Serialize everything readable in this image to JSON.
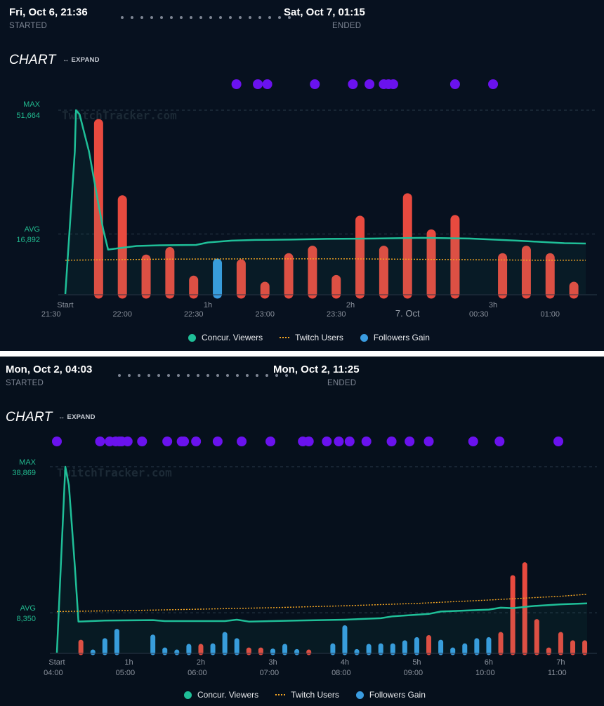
{
  "panels": [
    {
      "header": {
        "start_date": "Fri, Oct 6, 21:36",
        "start_label": "STARTED",
        "end_date": "Sat, Oct 7, 01:15",
        "end_label": "ENDED"
      },
      "chart_title": "CHART",
      "expand_label": "↔ EXPAND",
      "watermark": "TwitchTracker.com",
      "legend": {
        "viewers": "Concur. Viewers",
        "twitch": "Twitch Users",
        "followers": "Followers Gain"
      }
    },
    {
      "header": {
        "start_date": "Mon, Oct 2, 04:03",
        "start_label": "STARTED",
        "end_date": "Mon, Oct 2, 11:25",
        "end_label": "ENDED"
      },
      "chart_title": "CHART",
      "expand_label": "↔ EXPAND",
      "watermark": "TwitchTracker.com",
      "legend": {
        "viewers": "Concur. Viewers",
        "twitch": "Twitch Users",
        "followers": "Followers Gain"
      }
    }
  ],
  "colors": {
    "viewers": "#1fbf98",
    "twitch": "#f5a623",
    "followers_positive": "#e84a3f",
    "followers_gain": "#3a9ce0",
    "event_dot": "#6a12ee"
  },
  "chart_data": [
    {
      "type": "line",
      "y_markers": [
        {
          "label": "MAX",
          "value": 51664,
          "value_label": "51,664"
        },
        {
          "label": "AVG",
          "value": 16892,
          "value_label": "16,892"
        }
      ],
      "ylim": [
        0,
        51664
      ],
      "xlim_minutes": [
        0,
        219
      ],
      "x_duration_ticks": [
        {
          "label": "Start",
          "minutes": 0
        },
        {
          "label": "1h",
          "minutes": 60
        },
        {
          "label": "2h",
          "minutes": 120
        },
        {
          "label": "3h",
          "minutes": 180
        }
      ],
      "x_clock_ticks": [
        {
          "label": "21:30",
          "minutes": -6
        },
        {
          "label": "22:00",
          "minutes": 24
        },
        {
          "label": "22:30",
          "minutes": 54
        },
        {
          "label": "23:00",
          "minutes": 84
        },
        {
          "label": "23:30",
          "minutes": 114
        },
        {
          "label": "7. Oct",
          "minutes": 144,
          "bold": true
        },
        {
          "label": "00:30",
          "minutes": 174
        },
        {
          "label": "01:00",
          "minutes": 204
        }
      ],
      "series": [
        {
          "name": "Concur. Viewers",
          "kind": "line",
          "points": [
            [
              0,
              0
            ],
            [
              4,
              40000
            ],
            [
              4.5,
              51664
            ],
            [
              6,
              50500
            ],
            [
              10,
              40000
            ],
            [
              14,
              25000
            ],
            [
              16,
              18000
            ],
            [
              18,
              12500
            ],
            [
              30,
              13500
            ],
            [
              40,
              13700
            ],
            [
              55,
              13800
            ],
            [
              60,
              14500
            ],
            [
              70,
              15000
            ],
            [
              80,
              15200
            ],
            [
              95,
              15300
            ],
            [
              110,
              15500
            ],
            [
              130,
              15600
            ],
            [
              150,
              15800
            ],
            [
              170,
              15600
            ],
            [
              190,
              15000
            ],
            [
              210,
              14300
            ],
            [
              219,
              14200
            ]
          ]
        },
        {
          "name": "Twitch Users",
          "kind": "dotted",
          "points": [
            [
              0,
              9500
            ],
            [
              40,
              9800
            ],
            [
              80,
              9900
            ],
            [
              120,
              9900
            ],
            [
              160,
              9700
            ],
            [
              200,
              9500
            ],
            [
              219,
              9500
            ]
          ]
        }
      ],
      "followers": {
        "max": 27000,
        "bars": [
          {
            "minute": 14,
            "value": 25700,
            "type": "positive"
          },
          {
            "minute": 24,
            "value": 14500,
            "type": "positive"
          },
          {
            "minute": 34,
            "value": 5800,
            "type": "positive"
          },
          {
            "minute": 44,
            "value": 6900,
            "type": "positive"
          },
          {
            "minute": 54,
            "value": 2700,
            "type": "positive"
          },
          {
            "minute": 64,
            "value": 5200,
            "type": "gain"
          },
          {
            "minute": 74,
            "value": 5100,
            "type": "positive"
          },
          {
            "minute": 84,
            "value": 1800,
            "type": "positive"
          },
          {
            "minute": 94,
            "value": 6000,
            "type": "positive"
          },
          {
            "minute": 104,
            "value": 7100,
            "type": "positive"
          },
          {
            "minute": 114,
            "value": 2800,
            "type": "positive"
          },
          {
            "minute": 124,
            "value": 11500,
            "type": "positive"
          },
          {
            "minute": 134,
            "value": 7100,
            "type": "positive"
          },
          {
            "minute": 144,
            "value": 14800,
            "type": "positive"
          },
          {
            "minute": 154,
            "value": 9500,
            "type": "positive"
          },
          {
            "minute": 164,
            "value": 11600,
            "type": "positive"
          },
          {
            "minute": 184,
            "value": 6000,
            "type": "positive"
          },
          {
            "minute": 194,
            "value": 7100,
            "type": "positive"
          },
          {
            "minute": 204,
            "value": 6000,
            "type": "positive"
          },
          {
            "minute": 214,
            "value": 1800,
            "type": "positive"
          }
        ]
      },
      "events_minutes": [
        72,
        81,
        85,
        105,
        121,
        128,
        134,
        136,
        138,
        164,
        180
      ]
    },
    {
      "type": "line",
      "y_markers": [
        {
          "label": "MAX",
          "value": 38869,
          "value_label": "38,869"
        },
        {
          "label": "AVG",
          "value": 8350,
          "value_label": "8,350"
        }
      ],
      "ylim": [
        0,
        38869
      ],
      "xlim_minutes": [
        0,
        442
      ],
      "x_duration_ticks": [
        {
          "label": "Start",
          "minutes": 0
        },
        {
          "label": "1h",
          "minutes": 60
        },
        {
          "label": "2h",
          "minutes": 120
        },
        {
          "label": "3h",
          "minutes": 180
        },
        {
          "label": "4h",
          "minutes": 240
        },
        {
          "label": "5h",
          "minutes": 300
        },
        {
          "label": "6h",
          "minutes": 360
        },
        {
          "label": "7h",
          "minutes": 420
        }
      ],
      "x_clock_ticks": [
        {
          "label": "04:00",
          "minutes": -3
        },
        {
          "label": "05:00",
          "minutes": 57
        },
        {
          "label": "06:00",
          "minutes": 117
        },
        {
          "label": "07:00",
          "minutes": 177
        },
        {
          "label": "08:00",
          "minutes": 237
        },
        {
          "label": "09:00",
          "minutes": 297
        },
        {
          "label": "10:00",
          "minutes": 357
        },
        {
          "label": "11:00",
          "minutes": 417
        }
      ],
      "series": [
        {
          "name": "Concur. Viewers",
          "kind": "line",
          "points": [
            [
              0,
              0
            ],
            [
              7,
              38869
            ],
            [
              10,
              35000
            ],
            [
              15,
              18000
            ],
            [
              18,
              6500
            ],
            [
              40,
              6700
            ],
            [
              80,
              6800
            ],
            [
              90,
              6600
            ],
            [
              140,
              6600
            ],
            [
              150,
              6900
            ],
            [
              160,
              6500
            ],
            [
              200,
              6700
            ],
            [
              240,
              6900
            ],
            [
              270,
              7200
            ],
            [
              280,
              7600
            ],
            [
              310,
              8100
            ],
            [
              320,
              8600
            ],
            [
              360,
              9000
            ],
            [
              370,
              9400
            ],
            [
              380,
              9300
            ],
            [
              395,
              9700
            ],
            [
              400,
              9800
            ],
            [
              420,
              10100
            ],
            [
              442,
              10300
            ]
          ]
        },
        {
          "name": "Twitch Users",
          "kind": "dotted",
          "points": [
            [
              0,
              8600
            ],
            [
              60,
              8800
            ],
            [
              120,
              9100
            ],
            [
              180,
              9400
            ],
            [
              240,
              9800
            ],
            [
              300,
              10300
            ],
            [
              360,
              11000
            ],
            [
              420,
              11800
            ],
            [
              442,
              12200
            ]
          ]
        }
      ],
      "followers": {
        "max": 36000,
        "bars": [
          {
            "minute": 20,
            "value": 2500,
            "type": "positive"
          },
          {
            "minute": 30,
            "value": 500,
            "type": "gain"
          },
          {
            "minute": 40,
            "value": 2800,
            "type": "gain"
          },
          {
            "minute": 50,
            "value": 4600,
            "type": "gain"
          },
          {
            "minute": 80,
            "value": 3500,
            "type": "gain"
          },
          {
            "minute": 90,
            "value": 1000,
            "type": "gain"
          },
          {
            "minute": 100,
            "value": 500,
            "type": "gain"
          },
          {
            "minute": 110,
            "value": 1700,
            "type": "gain"
          },
          {
            "minute": 120,
            "value": 1700,
            "type": "positive"
          },
          {
            "minute": 130,
            "value": 1800,
            "type": "gain"
          },
          {
            "minute": 140,
            "value": 4000,
            "type": "gain"
          },
          {
            "minute": 150,
            "value": 2800,
            "type": "gain"
          },
          {
            "minute": 160,
            "value": 1000,
            "type": "positive"
          },
          {
            "minute": 170,
            "value": 1000,
            "type": "positive"
          },
          {
            "minute": 180,
            "value": 800,
            "type": "gain"
          },
          {
            "minute": 190,
            "value": 1700,
            "type": "gain"
          },
          {
            "minute": 200,
            "value": 700,
            "type": "gain"
          },
          {
            "minute": 210,
            "value": 500,
            "type": "positive"
          },
          {
            "minute": 230,
            "value": 1800,
            "type": "gain"
          },
          {
            "minute": 240,
            "value": 5300,
            "type": "gain"
          },
          {
            "minute": 250,
            "value": 700,
            "type": "gain"
          },
          {
            "minute": 260,
            "value": 1700,
            "type": "gain"
          },
          {
            "minute": 270,
            "value": 1800,
            "type": "gain"
          },
          {
            "minute": 280,
            "value": 1800,
            "type": "gain"
          },
          {
            "minute": 290,
            "value": 2400,
            "type": "gain"
          },
          {
            "minute": 300,
            "value": 3000,
            "type": "gain"
          },
          {
            "minute": 310,
            "value": 3400,
            "type": "positive"
          },
          {
            "minute": 320,
            "value": 2500,
            "type": "gain"
          },
          {
            "minute": 330,
            "value": 1000,
            "type": "gain"
          },
          {
            "minute": 340,
            "value": 1800,
            "type": "gain"
          },
          {
            "minute": 350,
            "value": 2800,
            "type": "gain"
          },
          {
            "minute": 360,
            "value": 3000,
            "type": "gain"
          },
          {
            "minute": 370,
            "value": 4000,
            "type": "positive"
          },
          {
            "minute": 380,
            "value": 15000,
            "type": "positive"
          },
          {
            "minute": 390,
            "value": 17500,
            "type": "positive"
          },
          {
            "minute": 400,
            "value": 6500,
            "type": "positive"
          },
          {
            "minute": 410,
            "value": 1000,
            "type": "positive"
          },
          {
            "minute": 420,
            "value": 4000,
            "type": "positive"
          },
          {
            "minute": 430,
            "value": 2400,
            "type": "positive"
          },
          {
            "minute": 440,
            "value": 2400,
            "type": "positive"
          }
        ]
      },
      "events_minutes": [
        0,
        36,
        44,
        49,
        52,
        54,
        59,
        71,
        92,
        104,
        106,
        116,
        134,
        154,
        178,
        205,
        210,
        225,
        235,
        244,
        258,
        279,
        294,
        310,
        347,
        369,
        418
      ]
    }
  ]
}
